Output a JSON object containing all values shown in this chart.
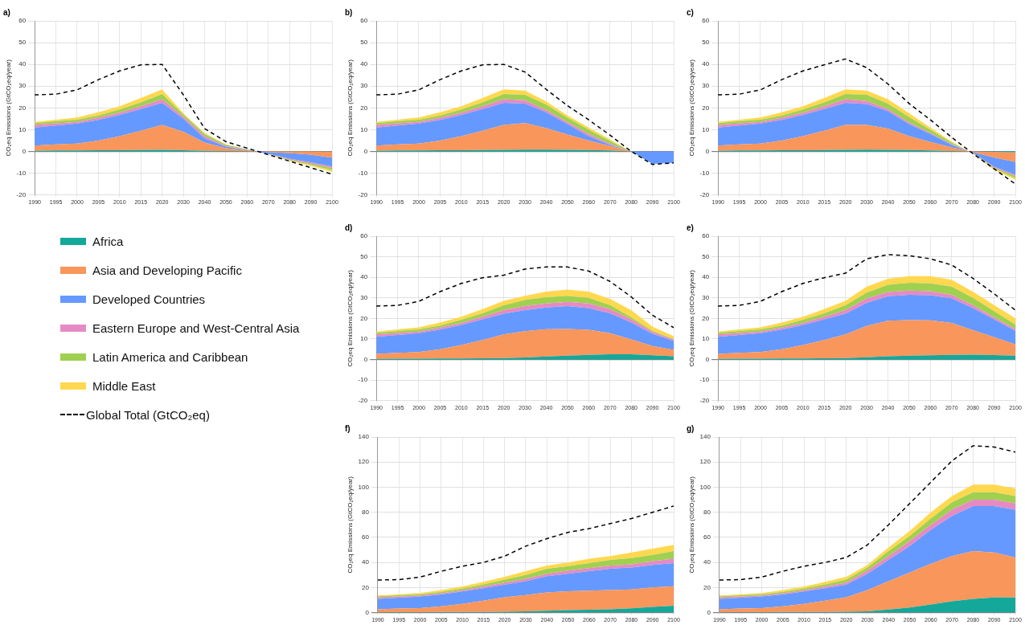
{
  "chart_data": [
    {
      "type": "area",
      "title": "a)",
      "ylabel": "CO₂eq Emissions (GtCO₂eq/year)",
      "categories": [
        "1990",
        "1995",
        "2000",
        "2005",
        "2010",
        "2015",
        "2020",
        "2030",
        "2040",
        "2050",
        "2060",
        "2070",
        "2080",
        "2090",
        "2100"
      ],
      "ylim": [
        -20,
        60
      ],
      "yticks": [
        -20,
        -10,
        0,
        10,
        20,
        30,
        40,
        50,
        60
      ],
      "grid": true,
      "stacked": true,
      "marker": "none",
      "legend": "bottom",
      "series": [
        {
          "name": "Africa",
          "color": "#14a89a",
          "values": [
            0.3,
            0.4,
            0.4,
            0.5,
            0.5,
            0.6,
            0.7,
            0.5,
            0.3,
            0.2,
            0.1,
            0,
            0,
            0,
            -0.1
          ]
        },
        {
          "name": "Asia and Developing Pacific",
          "color": "#f9965c",
          "values": [
            2.4,
            2.8,
            3.2,
            4.5,
            6.5,
            8.9,
            11.5,
            8.5,
            3.7,
            1.3,
            0.4,
            -0.3,
            -0.8,
            -1.5,
            -2.8
          ]
        },
        {
          "name": "Developed Countries",
          "color": "#6699ff",
          "values": [
            8.3,
            8.7,
            9.2,
            9.5,
            9.8,
            10,
            10.1,
            6,
            2,
            0.7,
            0.2,
            -0.8,
            -2.5,
            -3.5,
            -4
          ]
        },
        {
          "name": "Eastern Europe and West-Central Asia",
          "color": "#e68ac4",
          "values": [
            1.2,
            1,
            0.8,
            1,
            1,
            1.3,
            1.7,
            1,
            1,
            0.3,
            0.1,
            -0.1,
            -0.4,
            -0.6,
            -0.7
          ]
        },
        {
          "name": "Latin America and Caribbean",
          "color": "#a0d050",
          "values": [
            0.8,
            1,
            1,
            1,
            1.5,
            1.7,
            2.4,
            1,
            1,
            0.5,
            0.2,
            -0.1,
            -0.4,
            -0.6,
            -1
          ]
        },
        {
          "name": "Middle East",
          "color": "#ffd84f",
          "values": [
            0.6,
            0.7,
            1,
            1.5,
            1.5,
            2,
            2.1,
            0.5,
            0.5,
            0.3,
            0.1,
            -0.1,
            -0.3,
            -0.5,
            -0.8
          ]
        },
        {
          "name": "Global Total (GtCO₂eq)",
          "type": "line",
          "line_style": "dashed",
          "color": "#000000",
          "values": [
            26,
            26.3,
            28.3,
            33,
            37,
            39.8,
            40,
            26,
            10.5,
            4.5,
            1.5,
            -1.5,
            -4.5,
            -7.5,
            -10.5
          ]
        }
      ]
    },
    {
      "type": "area",
      "title": "b)",
      "ylabel": "CO₂eq Emissions (GtCO₂eq/year)",
      "categories": [
        "1990",
        "1995",
        "2000",
        "2005",
        "2010",
        "2015",
        "2020",
        "2030",
        "2040",
        "2050",
        "2060",
        "2070",
        "2080",
        "2090",
        "2100"
      ],
      "ylim": [
        -20,
        60
      ],
      "yticks": [
        -20,
        -10,
        0,
        10,
        20,
        30,
        40,
        50,
        60
      ],
      "grid": true,
      "stacked": true,
      "marker": "none",
      "series": [
        {
          "color": "#14a89a",
          "values": [
            0.3,
            0.4,
            0.4,
            0.5,
            0.5,
            0.6,
            0.7,
            0.8,
            0.8,
            0.7,
            0.6,
            0.4,
            0,
            0,
            0
          ]
        },
        {
          "color": "#f9965c",
          "values": [
            2.4,
            2.8,
            3.2,
            4.5,
            6.5,
            8.9,
            11.5,
            12.2,
            9.9,
            7,
            4.4,
            2.1,
            0,
            0,
            0
          ]
        },
        {
          "color": "#6699ff",
          "values": [
            8.3,
            8.7,
            9.2,
            9.5,
            9.8,
            10,
            10.1,
            9,
            7.3,
            4.8,
            2,
            0.5,
            0,
            -5.7,
            -5.3
          ]
        },
        {
          "color": "#e68ac4",
          "values": [
            1.2,
            1,
            0.8,
            1,
            1,
            1.3,
            1.7,
            1.5,
            1,
            1,
            1,
            0.5,
            0,
            0,
            0
          ]
        },
        {
          "color": "#a0d050",
          "values": [
            0.8,
            1,
            1,
            1,
            1.5,
            1.7,
            2.4,
            2.5,
            2.5,
            2,
            2,
            1.3,
            0,
            0,
            0
          ]
        },
        {
          "color": "#ffd84f",
          "values": [
            0.6,
            0.7,
            1,
            1.5,
            1.5,
            2,
            2.1,
            2,
            1.5,
            1,
            1,
            0.7,
            0,
            0,
            0
          ]
        },
        {
          "type": "line",
          "line_style": "dashed",
          "color": "#000000",
          "values": [
            26,
            26.3,
            28.3,
            33,
            37,
            39.8,
            40,
            36.5,
            28.5,
            21,
            14.5,
            7.5,
            0,
            -6,
            -5.3
          ]
        }
      ]
    },
    {
      "type": "area",
      "title": "c)",
      "ylabel": "CO₂eq Emissions (GtCO₂eq/year)",
      "categories": [
        "1990",
        "1995",
        "2000",
        "2005",
        "2010",
        "2015",
        "2020",
        "2030",
        "2040",
        "2050",
        "2060",
        "2070",
        "2080",
        "2090",
        "2100"
      ],
      "ylim": [
        -20,
        60
      ],
      "yticks": [
        -20,
        -10,
        0,
        10,
        20,
        30,
        40,
        50,
        60
      ],
      "grid": true,
      "stacked": true,
      "marker": "none",
      "series": [
        {
          "color": "#14a89a",
          "values": [
            0.3,
            0.4,
            0.4,
            0.5,
            0.5,
            0.6,
            0.7,
            0.8,
            0.7,
            0.6,
            0.4,
            0.2,
            0,
            -0.2,
            -0.4
          ]
        },
        {
          "color": "#f9965c",
          "values": [
            2.4,
            2.8,
            3.2,
            4.5,
            6.5,
            8.9,
            11.5,
            11.4,
            9.8,
            6.4,
            3.9,
            1.6,
            -0.3,
            -2.6,
            -4.4
          ]
        },
        {
          "color": "#6699ff",
          "values": [
            8.3,
            8.7,
            9.2,
            9.5,
            9.8,
            10,
            10.1,
            9.6,
            8,
            5.5,
            3.7,
            1.2,
            -0.4,
            -4.2,
            -5.9
          ]
        },
        {
          "color": "#e68ac4",
          "values": [
            1.2,
            1,
            0.8,
            1,
            1,
            1.3,
            1.7,
            1.4,
            1,
            0.8,
            0.5,
            0.3,
            -0.1,
            -0.5,
            -0.6
          ]
        },
        {
          "color": "#a0d050",
          "values": [
            0.8,
            1,
            1,
            1,
            1.5,
            1.7,
            2.4,
            2.8,
            2.5,
            2.5,
            1.5,
            0.7,
            -0.1,
            -0.5,
            -1
          ]
        },
        {
          "color": "#ffd84f",
          "values": [
            0.6,
            0.7,
            1,
            1.5,
            1.5,
            2,
            2.1,
            2,
            2,
            1.7,
            1,
            0.5,
            -0.1,
            -0.5,
            -0.7
          ]
        },
        {
          "type": "line",
          "line_style": "dashed",
          "color": "#000000",
          "values": [
            26,
            26.3,
            28.3,
            33,
            37,
            39.8,
            42.5,
            38.5,
            31,
            22,
            14.5,
            6.5,
            -1,
            -8,
            -15
          ]
        }
      ]
    },
    {
      "type": "area",
      "title": "d)",
      "ylabel": "CO₂eq Emissions (GtCO₂eq/year)",
      "categories": [
        "1990",
        "1995",
        "2000",
        "2005",
        "2010",
        "2015",
        "2020",
        "2030",
        "2040",
        "2050",
        "2060",
        "2070",
        "2080",
        "2090",
        "2100"
      ],
      "ylim": [
        -20,
        60
      ],
      "yticks": [
        -20,
        -10,
        0,
        10,
        20,
        30,
        40,
        50,
        60
      ],
      "grid": true,
      "stacked": true,
      "marker": "none",
      "series": [
        {
          "color": "#14a89a",
          "values": [
            0.3,
            0.4,
            0.4,
            0.5,
            0.5,
            0.6,
            0.7,
            1,
            1.4,
            1.8,
            2.2,
            2.5,
            2.5,
            2,
            1.5
          ]
        },
        {
          "color": "#f9965c",
          "values": [
            2.4,
            2.8,
            3.2,
            4.5,
            6.5,
            8.9,
            11.5,
            12.8,
            13.3,
            13,
            12.2,
            10.3,
            7.3,
            4.5,
            3.2
          ]
        },
        {
          "color": "#6699ff",
          "values": [
            8.3,
            8.7,
            9.2,
            9.5,
            9.8,
            10,
            10.1,
            10.2,
            10.6,
            11.2,
            10.6,
            9.7,
            8.2,
            6,
            4.3
          ]
        },
        {
          "color": "#e68ac4",
          "values": [
            1.2,
            1,
            0.8,
            1,
            1,
            1.3,
            1.7,
            2,
            2,
            2,
            2.3,
            2,
            1.5,
            1,
            0.7
          ]
        },
        {
          "color": "#a0d050",
          "values": [
            0.8,
            1,
            1,
            1,
            1.5,
            1.7,
            2.4,
            3,
            3,
            3,
            2.7,
            2,
            1,
            0.5,
            0.3
          ]
        },
        {
          "color": "#ffd84f",
          "values": [
            0.6,
            0.7,
            1,
            1.5,
            1.5,
            2,
            2.1,
            2,
            2.7,
            3,
            3,
            3,
            3.5,
            2,
            1.3
          ]
        },
        {
          "type": "line",
          "line_style": "dashed",
          "color": "#000000",
          "values": [
            26,
            26.3,
            28.3,
            33,
            37,
            39.8,
            41,
            44,
            45,
            45,
            43,
            38,
            30.5,
            21.5,
            15.5
          ]
        }
      ]
    },
    {
      "type": "area",
      "title": "e)",
      "ylabel": "CO₂eq Emissions (GtCO₂eq/year)",
      "categories": [
        "1990",
        "1995",
        "2000",
        "2005",
        "2010",
        "2015",
        "2020",
        "2030",
        "2040",
        "2050",
        "2060",
        "2070",
        "2080",
        "2090",
        "2100"
      ],
      "ylim": [
        -20,
        60
      ],
      "yticks": [
        -20,
        -10,
        0,
        10,
        20,
        30,
        40,
        50,
        60
      ],
      "grid": true,
      "stacked": true,
      "marker": "none",
      "series": [
        {
          "color": "#14a89a",
          "values": [
            0.3,
            0.4,
            0.4,
            0.5,
            0.5,
            0.6,
            0.7,
            1.1,
            1.5,
            1.8,
            2,
            2.2,
            2.3,
            2.1,
            1.8
          ]
        },
        {
          "color": "#f9965c",
          "values": [
            2.4,
            2.8,
            3.2,
            4.5,
            6.5,
            8.9,
            11.5,
            15.2,
            17.3,
            17.3,
            17,
            15.6,
            12,
            8.7,
            5.5
          ]
        },
        {
          "color": "#6699ff",
          "values": [
            8.3,
            8.7,
            9.2,
            9.5,
            9.8,
            10,
            10.1,
            11.2,
            12,
            12.4,
            12.3,
            12,
            10.7,
            8.7,
            6.7
          ]
        },
        {
          "color": "#e68ac4",
          "values": [
            1.2,
            1,
            0.8,
            1,
            1,
            1.3,
            1.7,
            2.2,
            2,
            2,
            1.9,
            1.7,
            1.5,
            1,
            0.8
          ]
        },
        {
          "color": "#a0d050",
          "values": [
            0.8,
            1,
            1,
            1,
            1.5,
            1.7,
            2.4,
            2.8,
            3.5,
            3.8,
            3.8,
            4,
            3.5,
            3,
            2.2
          ]
        },
        {
          "color": "#ffd84f",
          "values": [
            0.6,
            0.7,
            1,
            1.5,
            1.5,
            2,
            2.1,
            3,
            3,
            3.2,
            3.5,
            3.3,
            3,
            3,
            3
          ]
        },
        {
          "type": "line",
          "line_style": "dashed",
          "color": "#000000",
          "values": [
            26,
            26.3,
            28.3,
            33,
            37,
            39.8,
            42,
            49,
            51,
            50.5,
            49,
            46,
            39.5,
            32,
            24
          ]
        }
      ]
    },
    {
      "type": "area",
      "title": "f)",
      "ylabel": "CO₂eq Emissions (GtCO₂eq/year)",
      "categories": [
        "1990",
        "1995",
        "2000",
        "2005",
        "2010",
        "2015",
        "2020",
        "2030",
        "2040",
        "2050",
        "2060",
        "2070",
        "2080",
        "2090",
        "2100"
      ],
      "ylim": [
        0,
        140
      ],
      "yticks": [
        0,
        20,
        40,
        60,
        80,
        100,
        120,
        140
      ],
      "grid": true,
      "stacked": true,
      "marker": "none",
      "series": [
        {
          "color": "#14a89a",
          "values": [
            0.3,
            0.4,
            0.4,
            0.5,
            0.5,
            0.6,
            0.7,
            1,
            1.5,
            2,
            2.3,
            2.7,
            3.5,
            4.5,
            5.5
          ]
        },
        {
          "color": "#f9965c",
          "values": [
            2.4,
            2.8,
            3.2,
            4.5,
            6.5,
            8.9,
            11.5,
            13,
            14.5,
            15,
            15.2,
            15.3,
            15,
            15.5,
            15.5
          ]
        },
        {
          "color": "#6699ff",
          "values": [
            8.3,
            8.7,
            9.2,
            9.5,
            9.8,
            10,
            10.1,
            11,
            13,
            14,
            15.5,
            17,
            17.5,
            18,
            18.5
          ]
        },
        {
          "color": "#e68ac4",
          "values": [
            1.2,
            1,
            0.8,
            1,
            1,
            1.3,
            1.7,
            2,
            2,
            2.5,
            2.5,
            2.5,
            2.5,
            3,
            3.5
          ]
        },
        {
          "color": "#a0d050",
          "values": [
            0.8,
            1,
            1,
            1,
            1.5,
            1.7,
            2.4,
            3,
            4,
            3.5,
            4,
            4.5,
            5,
            5,
            6
          ]
        },
        {
          "color": "#ffd84f",
          "values": [
            0.6,
            0.7,
            1,
            1.5,
            1.5,
            2,
            2.1,
            3,
            2.5,
            3,
            3.5,
            3,
            4.5,
            5,
            5
          ]
        },
        {
          "type": "line",
          "line_style": "dashed",
          "color": "#000000",
          "values": [
            26,
            26.3,
            28.3,
            33,
            37,
            40,
            45,
            53,
            59,
            64,
            67,
            71,
            75,
            80,
            85
          ]
        }
      ]
    },
    {
      "type": "area",
      "title": "g)",
      "ylabel": "CO₂eq Emissions (GtCO₂eq/year)",
      "categories": [
        "1990",
        "1995",
        "2000",
        "2005",
        "2010",
        "2015",
        "2020",
        "2030",
        "2040",
        "2050",
        "2060",
        "2070",
        "2080",
        "2090",
        "2100"
      ],
      "ylim": [
        0,
        140
      ],
      "yticks": [
        0,
        20,
        40,
        60,
        80,
        100,
        120,
        140
      ],
      "grid": true,
      "stacked": true,
      "marker": "none",
      "series": [
        {
          "color": "#14a89a",
          "values": [
            0.3,
            0.4,
            0.4,
            0.5,
            0.5,
            0.6,
            0.7,
            1,
            2.5,
            4,
            6.5,
            9,
            11,
            12,
            12
          ]
        },
        {
          "color": "#f9965c",
          "values": [
            2.4,
            2.8,
            3.2,
            4.5,
            6.5,
            8.9,
            11.5,
            17,
            22.5,
            28,
            32.5,
            36,
            38,
            36,
            32
          ]
        },
        {
          "color": "#6699ff",
          "values": [
            8.3,
            8.7,
            9.2,
            9.5,
            9.8,
            10,
            10.1,
            13,
            17,
            21,
            27,
            32,
            36,
            37,
            38
          ]
        },
        {
          "color": "#e68ac4",
          "values": [
            1.2,
            1,
            0.8,
            1,
            1,
            1.3,
            1.7,
            2.5,
            3,
            4,
            4,
            5,
            5,
            5,
            5
          ]
        },
        {
          "color": "#a0d050",
          "values": [
            0.8,
            1,
            1,
            1,
            1.5,
            1.7,
            2.4,
            2.5,
            4,
            4,
            5,
            6,
            6,
            6,
            6
          ]
        },
        {
          "color": "#ffd84f",
          "values": [
            0.6,
            0.7,
            1,
            1.5,
            1.5,
            2,
            2.1,
            2,
            3,
            4,
            5,
            5,
            6,
            6,
            6
          ]
        },
        {
          "type": "line",
          "line_style": "dashed",
          "color": "#000000",
          "values": [
            26,
            26.3,
            28.3,
            33,
            37,
            40,
            44,
            54,
            70,
            87,
            104,
            121,
            133,
            132,
            128
          ]
        }
      ]
    }
  ]
}
